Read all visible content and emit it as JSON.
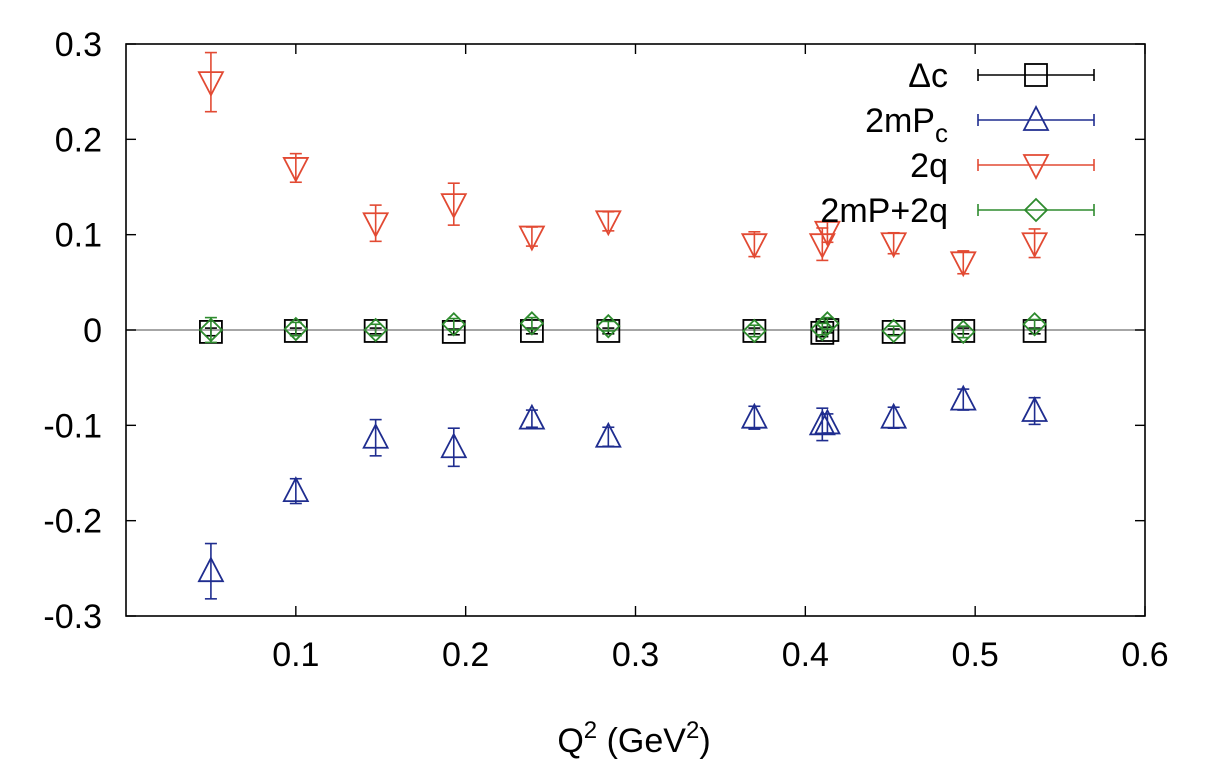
{
  "chart_data": {
    "type": "scatter",
    "xlabel": "Q",
    "xlabel_sup": "2",
    "xlabel_rest": " (GeV",
    "xlabel_rest_sup": "2",
    "xlabel_close": ")",
    "ylabel": "",
    "xlim": [
      0,
      0.6
    ],
    "ylim": [
      -0.3,
      0.3
    ],
    "x_ticks": [
      0.1,
      0.2,
      0.3,
      0.4,
      0.5,
      0.6
    ],
    "x_tick_labels": [
      "0.1",
      "0.2",
      "0.3",
      "0.4",
      "0.5",
      "0.6"
    ],
    "y_ticks": [
      -0.3,
      -0.2,
      -0.1,
      0,
      0.1,
      0.2,
      0.3
    ],
    "y_tick_labels": [
      "-0.3",
      "-0.2",
      "-0.1",
      "0",
      "0.1",
      "0.2",
      "0.3"
    ],
    "zero_line": true,
    "legend_position": "top-right",
    "series": [
      {
        "name": "Δc",
        "label_main": "Δc",
        "label_sub": "",
        "color": "#000000",
        "marker": "square",
        "points": [
          {
            "x": 0.05,
            "y": -0.002,
            "err": 0.004
          },
          {
            "x": 0.1,
            "y": -0.001,
            "err": 0.003
          },
          {
            "x": 0.147,
            "y": -0.001,
            "err": 0.003
          },
          {
            "x": 0.193,
            "y": -0.002,
            "err": 0.003
          },
          {
            "x": 0.239,
            "y": -0.001,
            "err": 0.003
          },
          {
            "x": 0.284,
            "y": -0.001,
            "err": 0.003
          },
          {
            "x": 0.37,
            "y": -0.001,
            "err": 0.003
          },
          {
            "x": 0.41,
            "y": -0.003,
            "err": 0.004
          },
          {
            "x": 0.413,
            "y": 0.0,
            "err": 0.003
          },
          {
            "x": 0.452,
            "y": -0.002,
            "err": 0.003
          },
          {
            "x": 0.493,
            "y": -0.001,
            "err": 0.003
          },
          {
            "x": 0.535,
            "y": -0.001,
            "err": 0.003
          }
        ]
      },
      {
        "name": "2mPc",
        "label_main": "2mP",
        "label_sub": "c",
        "color": "#1f2d8f",
        "marker": "triangle-up",
        "points": [
          {
            "x": 0.05,
            "y": -0.253,
            "err": 0.029
          },
          {
            "x": 0.1,
            "y": -0.169,
            "err": 0.013
          },
          {
            "x": 0.147,
            "y": -0.113,
            "err": 0.019
          },
          {
            "x": 0.193,
            "y": -0.123,
            "err": 0.02
          },
          {
            "x": 0.239,
            "y": -0.093,
            "err": 0.009
          },
          {
            "x": 0.284,
            "y": -0.112,
            "err": 0.01
          },
          {
            "x": 0.37,
            "y": -0.092,
            "err": 0.012
          },
          {
            "x": 0.41,
            "y": -0.099,
            "err": 0.017
          },
          {
            "x": 0.413,
            "y": -0.098,
            "err": 0.01
          },
          {
            "x": 0.452,
            "y": -0.092,
            "err": 0.011
          },
          {
            "x": 0.493,
            "y": -0.073,
            "err": 0.011
          },
          {
            "x": 0.535,
            "y": -0.085,
            "err": 0.014
          }
        ]
      },
      {
        "name": "2q",
        "label_main": "2q",
        "label_sub": "",
        "color": "#e24a33",
        "marker": "triangle-down",
        "points": [
          {
            "x": 0.05,
            "y": 0.26,
            "err": 0.031
          },
          {
            "x": 0.1,
            "y": 0.17,
            "err": 0.015
          },
          {
            "x": 0.147,
            "y": 0.112,
            "err": 0.019
          },
          {
            "x": 0.193,
            "y": 0.132,
            "err": 0.022
          },
          {
            "x": 0.239,
            "y": 0.098,
            "err": 0.01
          },
          {
            "x": 0.284,
            "y": 0.114,
            "err": 0.01
          },
          {
            "x": 0.37,
            "y": 0.09,
            "err": 0.013
          },
          {
            "x": 0.41,
            "y": 0.09,
            "err": 0.017
          },
          {
            "x": 0.413,
            "y": 0.103,
            "err": 0.011
          },
          {
            "x": 0.452,
            "y": 0.091,
            "err": 0.011
          },
          {
            "x": 0.493,
            "y": 0.071,
            "err": 0.012
          },
          {
            "x": 0.535,
            "y": 0.091,
            "err": 0.015
          }
        ]
      },
      {
        "name": "2mP+2q",
        "label_main": "2mP+2q",
        "label_sub": "",
        "color": "#2e8b2e",
        "marker": "diamond",
        "points": [
          {
            "x": 0.05,
            "y": 0.0,
            "err": 0.013
          },
          {
            "x": 0.1,
            "y": 0.001,
            "err": 0.007
          },
          {
            "x": 0.147,
            "y": 0.0,
            "err": 0.006
          },
          {
            "x": 0.193,
            "y": 0.006,
            "err": 0.006
          },
          {
            "x": 0.239,
            "y": 0.007,
            "err": 0.006
          },
          {
            "x": 0.284,
            "y": 0.004,
            "err": 0.005
          },
          {
            "x": 0.37,
            "y": -0.001,
            "err": 0.006
          },
          {
            "x": 0.41,
            "y": 0.001,
            "err": 0.006
          },
          {
            "x": 0.413,
            "y": 0.007,
            "err": 0.006
          },
          {
            "x": 0.452,
            "y": -0.001,
            "err": 0.005
          },
          {
            "x": 0.493,
            "y": -0.002,
            "err": 0.006
          },
          {
            "x": 0.535,
            "y": 0.006,
            "err": 0.005
          }
        ]
      }
    ]
  }
}
